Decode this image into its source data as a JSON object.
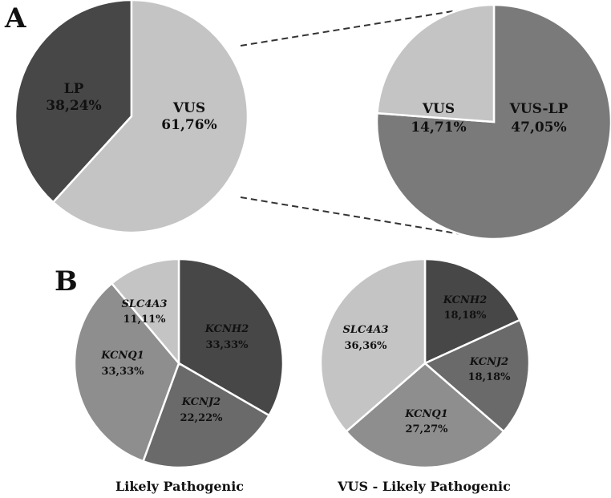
{
  "panels": {
    "a": "A",
    "b": "B"
  },
  "chart_data": [
    {
      "id": "A-left",
      "type": "pie",
      "title": "",
      "slices": [
        {
          "label": "LP",
          "value": 38.24,
          "text": "38,24%",
          "color": "#474747",
          "italic": false
        },
        {
          "label": "VUS",
          "value": 61.76,
          "text": "61,76%",
          "color": "#c4c4c4",
          "italic": false
        }
      ]
    },
    {
      "id": "A-right",
      "type": "pie",
      "title": "",
      "slices": [
        {
          "label": "VUS-LP",
          "value": 47.05,
          "text": "47,05%",
          "color": "#7a7a7a",
          "italic": false
        },
        {
          "label": "VUS",
          "value": 14.71,
          "text": "14,71%",
          "color": "#c4c4c4",
          "italic": false
        }
      ]
    },
    {
      "id": "B-left",
      "type": "pie",
      "title": "Likely Pathogenic",
      "slices": [
        {
          "label": "KCNH2",
          "value": 33.33,
          "text": "33,33%",
          "color": "#474747",
          "italic": true
        },
        {
          "label": "KCNJ2",
          "value": 22.22,
          "text": "22,22%",
          "color": "#6a6a6a",
          "italic": true
        },
        {
          "label": "KCNQ1",
          "value": 33.33,
          "text": "33,33%",
          "color": "#8e8e8e",
          "italic": true
        },
        {
          "label": "SLC4A3",
          "value": 11.11,
          "text": "11,11%",
          "color": "#c4c4c4",
          "italic": true
        }
      ]
    },
    {
      "id": "B-right",
      "type": "pie",
      "title": "VUS - Likely Pathogenic",
      "slices": [
        {
          "label": "KCNH2",
          "value": 18.18,
          "text": "18,18%",
          "color": "#474747",
          "italic": true
        },
        {
          "label": "KCNJ2",
          "value": 18.18,
          "text": "18,18%",
          "color": "#6a6a6a",
          "italic": true
        },
        {
          "label": "KCNQ1",
          "value": 27.27,
          "text": "27,27%",
          "color": "#8e8e8e",
          "italic": true
        },
        {
          "label": "SLC4A3",
          "value": 36.36,
          "text": "36,36%",
          "color": "#c4c4c4",
          "italic": true
        }
      ]
    }
  ]
}
